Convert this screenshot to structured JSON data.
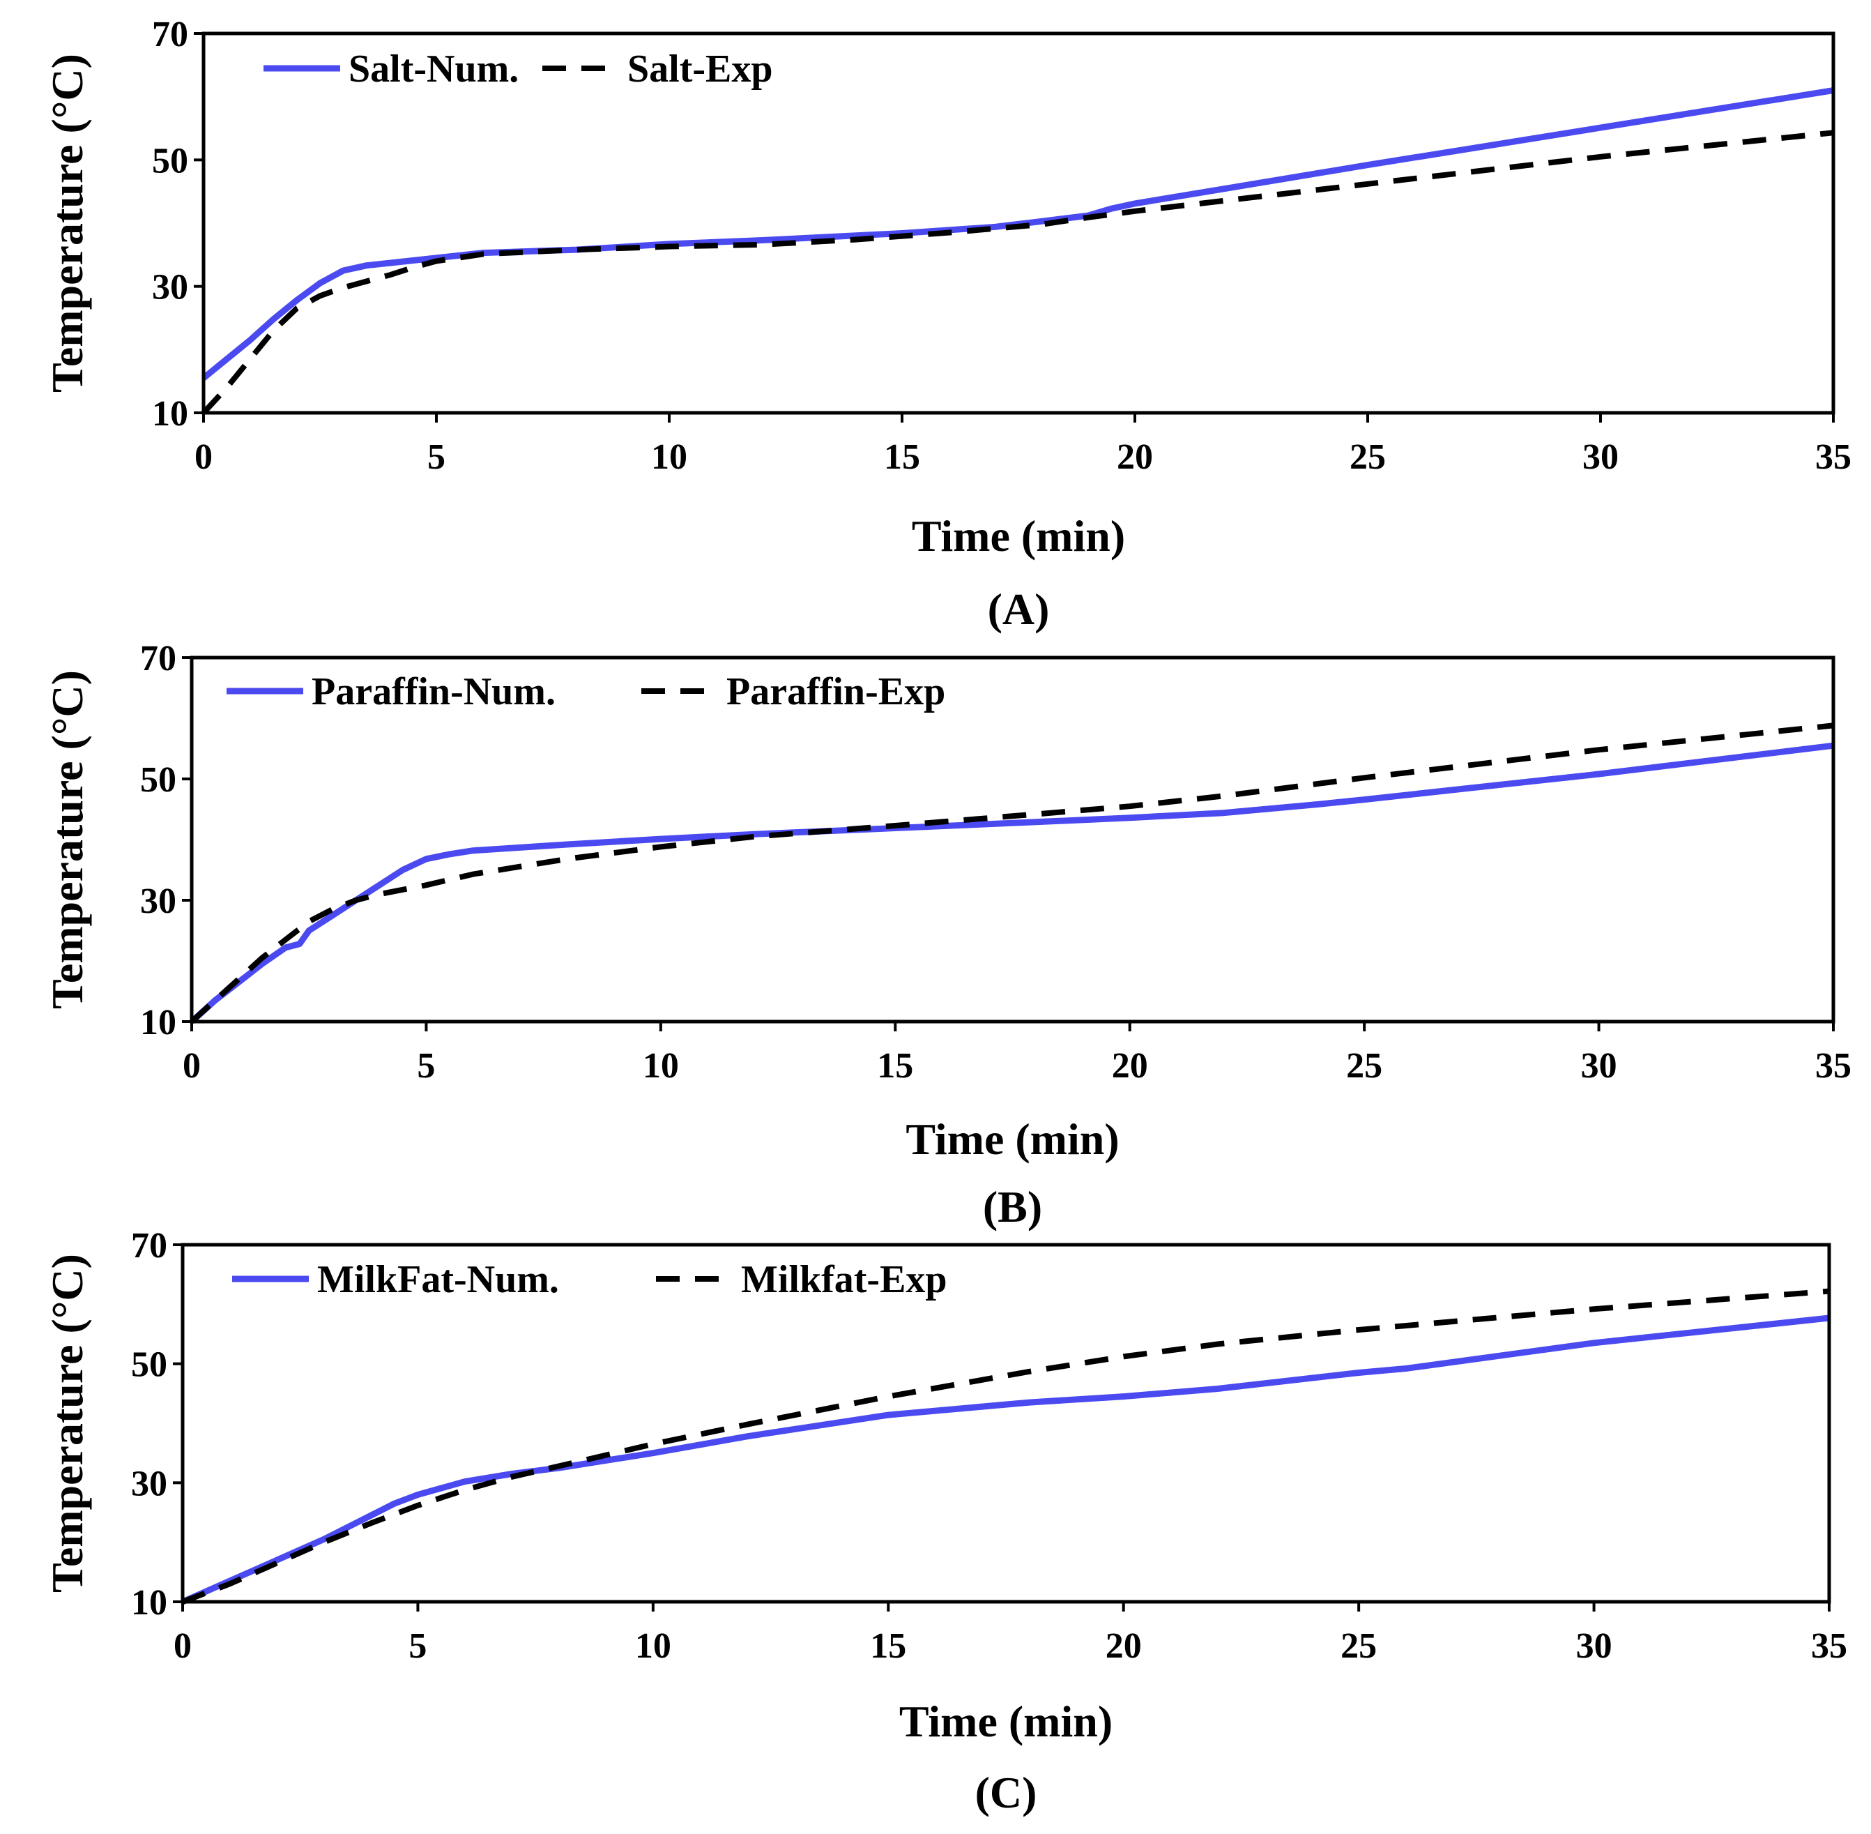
{
  "chart_data": [
    {
      "type": "line",
      "panel_label": "(A)",
      "xlabel": "Time (min)",
      "ylabel": "Temperature (°C)",
      "xlim": [
        0,
        35
      ],
      "ylim": [
        10,
        70
      ],
      "xticks": [
        0,
        5,
        10,
        15,
        20,
        25,
        30,
        35
      ],
      "yticks": [
        10,
        30,
        50,
        70
      ],
      "xtick_labels": [
        "0",
        "5",
        "10",
        "15",
        "20",
        "25",
        "30",
        "35"
      ],
      "ytick_labels": [
        "10",
        "30",
        "50",
        "70"
      ],
      "grid": false,
      "legend_position": "top-left",
      "series": [
        {
          "name": "Salt-Num.",
          "style": "solid",
          "color": "#4a4af0",
          "x": [
            0,
            0.5,
            1,
            1.5,
            2,
            2.5,
            3,
            3.5,
            4,
            5,
            6,
            8,
            10,
            12,
            15,
            17,
            18,
            19,
            19.5,
            20,
            25,
            30,
            35
          ],
          "y": [
            15.5,
            18.5,
            21.5,
            24.8,
            27.8,
            30.5,
            32.5,
            33.3,
            33.7,
            34.5,
            35.3,
            35.8,
            36.7,
            37.3,
            38.4,
            39.4,
            40.3,
            41.2,
            42.3,
            43.1,
            49.2,
            55.1,
            61
          ]
        },
        {
          "name": "Salt-Exp",
          "style": "dashed",
          "color": "#000000",
          "x": [
            0,
            0.5,
            1,
            1.5,
            2,
            2.5,
            3,
            3.5,
            4,
            4.5,
            5,
            6,
            8,
            10,
            12,
            14,
            16,
            18,
            19,
            20,
            25,
            30,
            35
          ],
          "y": [
            10,
            14,
            18.5,
            23,
            26.5,
            28.5,
            29.8,
            30.8,
            31.8,
            33,
            34,
            35.1,
            35.8,
            36.3,
            36.6,
            37.4,
            38.5,
            39.8,
            40.9,
            41.9,
            46.2,
            50.5,
            54.3
          ]
        }
      ]
    },
    {
      "type": "line",
      "panel_label": "(B)",
      "xlabel": "Time (min)",
      "ylabel": "Temperature (°C)",
      "xlim": [
        0,
        35
      ],
      "ylim": [
        10,
        70
      ],
      "xticks": [
        0,
        5,
        10,
        15,
        20,
        25,
        30,
        35
      ],
      "yticks": [
        10,
        30,
        50,
        70
      ],
      "xtick_labels": [
        "0",
        "5",
        "10",
        "15",
        "20",
        "25",
        "30",
        "35"
      ],
      "ytick_labels": [
        "10",
        "30",
        "50",
        "70"
      ],
      "grid": false,
      "legend_position": "top-left",
      "series": [
        {
          "name": "Paraffin-Num.",
          "style": "solid",
          "color": "#4a4af0",
          "x": [
            0,
            0.5,
            1,
            1.5,
            2,
            2.3,
            2.5,
            3,
            3.5,
            4,
            4.5,
            5,
            5.5,
            6,
            8,
            10,
            12,
            15,
            18,
            20,
            22,
            24,
            25,
            30,
            35
          ],
          "y": [
            10,
            13.5,
            16.5,
            19.5,
            22.2,
            22.8,
            25,
            27.5,
            30,
            32.5,
            35,
            36.8,
            37.6,
            38.2,
            39.2,
            40.1,
            40.9,
            41.9,
            42.9,
            43.6,
            44.4,
            45.8,
            46.6,
            50.8,
            55.5
          ]
        },
        {
          "name": "Paraffin-Exp",
          "style": "dashed",
          "color": "#000000",
          "x": [
            0,
            0.5,
            1,
            1.5,
            2,
            2.5,
            3,
            3.5,
            4,
            5,
            6,
            8,
            10,
            12,
            15,
            18,
            20,
            22,
            25,
            30,
            35
          ],
          "y": [
            10,
            13.5,
            17,
            20.5,
            23.5,
            26.5,
            28.5,
            30,
            31,
            32.5,
            34.3,
            36.8,
            38.8,
            40.5,
            42.3,
            44.2,
            45.5,
            47.2,
            50.2,
            54.8,
            58.8
          ]
        }
      ]
    },
    {
      "type": "line",
      "panel_label": "(C)",
      "xlabel": "Time (min)",
      "ylabel": "Temperature (°C)",
      "xlim": [
        0,
        35
      ],
      "ylim": [
        10,
        70
      ],
      "xticks": [
        0,
        5,
        10,
        15,
        20,
        25,
        30,
        35
      ],
      "yticks": [
        10,
        30,
        50,
        70
      ],
      "xtick_labels": [
        "0",
        "5",
        "10",
        "15",
        "20",
        "25",
        "30",
        "35"
      ],
      "ytick_labels": [
        "10",
        "30",
        "50",
        "70"
      ],
      "grid": false,
      "legend_position": "top-left",
      "series": [
        {
          "name": "MilkFat-Num.",
          "style": "solid",
          "color": "#4a4af0",
          "x": [
            0,
            1,
            2,
            3,
            4,
            4.5,
            5,
            6,
            7,
            8,
            10,
            12,
            15,
            18,
            20,
            22,
            25,
            26,
            30,
            35
          ],
          "y": [
            10,
            13.5,
            17,
            20.5,
            24.5,
            26.5,
            28,
            30.2,
            31.5,
            32.5,
            35,
            37.8,
            41.4,
            43.5,
            44.5,
            45.8,
            48.5,
            49.2,
            53.5,
            57.7
          ]
        },
        {
          "name": "Milkfat-Exp",
          "style": "dashed",
          "color": "#000000",
          "x": [
            0,
            1,
            2,
            3,
            4,
            5,
            6,
            7,
            8,
            10,
            12,
            15,
            18,
            20,
            22,
            25,
            28,
            30,
            35
          ],
          "y": [
            10,
            13,
            16.5,
            20,
            23.2,
            26.2,
            28.8,
            31,
            32.8,
            36.5,
            39.8,
            44.5,
            48.7,
            51.2,
            53.3,
            55.7,
            57.8,
            59.2,
            62.2
          ]
        }
      ]
    }
  ]
}
